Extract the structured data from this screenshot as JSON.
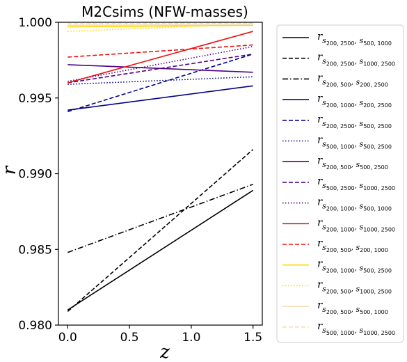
{
  "chart_data": {
    "type": "line",
    "title": "M2Csims (NFW-masses)",
    "xlabel": "z",
    "ylabel": "r",
    "xlim": [
      -0.075,
      1.575
    ],
    "ylim": [
      0.98,
      1.0
    ],
    "xticks": [
      0.0,
      0.5,
      1.0,
      1.5
    ],
    "xtick_labels": [
      "0.0",
      "0.5",
      "1.0",
      "1.5"
    ],
    "yticks": [
      0.98,
      0.985,
      0.99,
      0.995,
      1.0
    ],
    "ytick_labels": [
      "0.980",
      "0.985",
      "0.990",
      "0.995",
      "1.000"
    ],
    "grid": false,
    "legend_position": "outside-right",
    "series": [
      {
        "name": "r_{s_{200,2500}, s_{500,1000}}",
        "main": "r",
        "sub1": "s",
        "sub1sub": "200, 2500",
        "sub2": "s",
        "sub2sub": "500, 1000",
        "color": "#000000",
        "dash": "solid",
        "x": [
          0.0,
          1.5
        ],
        "y": [
          0.981,
          0.9889
        ]
      },
      {
        "name": "r_{s_{200,2500}, s_{1000,2500}}",
        "main": "r",
        "sub1": "s",
        "sub1sub": "200, 2500",
        "sub2": "s",
        "sub2sub": "1000, 2500",
        "color": "#000000",
        "dash": "dashed",
        "x": [
          0.0,
          1.5
        ],
        "y": [
          0.9809,
          0.9916
        ]
      },
      {
        "name": "r_{s_{200,500}, s_{200,2500}}",
        "main": "r",
        "sub1": "s",
        "sub1sub": "200, 500",
        "sub2": "s",
        "sub2sub": "200, 2500",
        "color": "#000000",
        "dash": "dashdot",
        "x": [
          0.0,
          1.5
        ],
        "y": [
          0.9848,
          0.9893
        ]
      },
      {
        "name": "r_{s_{200,1000}, s_{200,2500}}",
        "main": "r",
        "sub1": "s",
        "sub1sub": "200, 1000",
        "sub2": "s",
        "sub2sub": "200, 2500",
        "color": "#00008b",
        "dash": "solid",
        "x": [
          0.0,
          1.5
        ],
        "y": [
          0.9942,
          0.9958
        ]
      },
      {
        "name": "r_{s_{200,2500}, s_{500,2500}}",
        "main": "r",
        "sub1": "s",
        "sub1sub": "200, 2500",
        "sub2": "s",
        "sub2sub": "500, 2500",
        "color": "#00008b",
        "dash": "dashed",
        "x": [
          0.0,
          1.5
        ],
        "y": [
          0.9941,
          0.9979
        ]
      },
      {
        "name": "r_{s_{500,1000}, s_{500,2500}}",
        "main": "r",
        "sub1": "s",
        "sub1sub": "500, 1000",
        "sub2": "s",
        "sub2sub": "500, 2500",
        "color": "#00008b",
        "dash": "dotted",
        "x": [
          0.0,
          1.5
        ],
        "y": [
          0.9959,
          0.9964
        ]
      },
      {
        "name": "r_{s_{200,500}, s_{500,2500}}",
        "main": "r",
        "sub1": "s",
        "sub1sub": "200, 500",
        "sub2": "s",
        "sub2sub": "500, 2500",
        "color": "#4b0082",
        "dash": "solid",
        "x": [
          0.0,
          1.5
        ],
        "y": [
          0.9972,
          0.9967
        ]
      },
      {
        "name": "r_{s_{500,2500}, s_{1000,2500}}",
        "main": "r",
        "sub1": "s",
        "sub1sub": "500, 2500",
        "sub2": "s",
        "sub2sub": "1000, 2500",
        "color": "#4b0082",
        "dash": "dashed",
        "x": [
          0.0,
          1.5
        ],
        "y": [
          0.996,
          0.9979
        ]
      },
      {
        "name": "r_{s_{200,1000}, s_{500,1000}}",
        "main": "r",
        "sub1": "s",
        "sub1sub": "200, 1000",
        "sub2": "s",
        "sub2sub": "500, 1000",
        "color": "#4b0082",
        "dash": "dotted",
        "x": [
          0.0,
          1.5
        ],
        "y": [
          0.9961,
          0.9984
        ]
      },
      {
        "name": "r_{s_{200,1000}, s_{1000,2500}}",
        "main": "r",
        "sub1": "s",
        "sub1sub": "200, 1000",
        "sub2": "s",
        "sub2sub": "1000, 2500",
        "color": "#ee1111",
        "dash": "solid",
        "x": [
          0.0,
          1.5
        ],
        "y": [
          0.996,
          0.9994
        ]
      },
      {
        "name": "r_{s_{200,500}, s_{200,1000}}",
        "main": "r",
        "sub1": "s",
        "sub1sub": "200, 500",
        "sub2": "s",
        "sub2sub": "200, 1000",
        "color": "#ee1111",
        "dash": "dashed",
        "x": [
          0.0,
          1.5
        ],
        "y": [
          0.9977,
          0.9985
        ]
      },
      {
        "name": "r_{s_{200,1000}, s_{500,2500}}",
        "main": "r",
        "sub1": "s",
        "sub1sub": "200, 1000",
        "sub2": "s",
        "sub2sub": "500, 2500",
        "color": "#ffd700",
        "dash": "solid",
        "x": [
          0.0,
          1.5
        ],
        "y": [
          0.9997,
          0.9998
        ]
      },
      {
        "name": "r_{s_{200,500}, s_{1000,2500}}",
        "main": "r",
        "sub1": "s",
        "sub1sub": "200, 500",
        "sub2": "s",
        "sub2sub": "1000, 2500",
        "color": "#ffd700",
        "dash": "dotted",
        "x": [
          0.0,
          1.5
        ],
        "y": [
          0.9994,
          0.9999
        ]
      },
      {
        "name": "r_{s_{200,500}, s_{500,1000}}",
        "main": "r",
        "sub1": "s",
        "sub1sub": "200, 500",
        "sub2": "s",
        "sub2sub": "500, 1000",
        "color": "#f5deb3",
        "dash": "solid",
        "x": [
          0.0,
          1.5
        ],
        "y": [
          0.9998,
          0.99985
        ]
      },
      {
        "name": "r_{s_{500,1000}, s_{1000,2500}}",
        "main": "r",
        "sub1": "s",
        "sub1sub": "500, 1000",
        "sub2": "s",
        "sub2sub": "1000, 2500",
        "color": "#f5deb3",
        "dash": "dashed",
        "x": [
          0.0,
          1.5
        ],
        "y": [
          0.9999,
          0.99995
        ]
      }
    ]
  }
}
